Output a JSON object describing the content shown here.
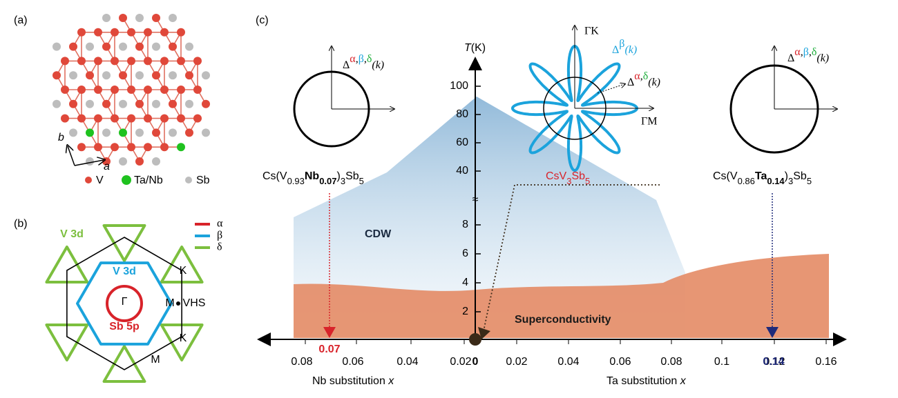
{
  "panel_a": {
    "label": "(a)",
    "axis_b": "b",
    "axis_a": "a",
    "legend": [
      "V",
      "Ta/Nb",
      "Sb"
    ]
  },
  "panel_b": {
    "label": "(b)",
    "legend": [
      "α",
      "β",
      "δ"
    ],
    "v3d_outer": "V 3d",
    "v3d_inner": "V 3d",
    "gamma": "Γ",
    "sb5p": "Sb 5p",
    "k_upper": "K",
    "m_right": "M",
    "vhs": "VHS",
    "k_lower": "K",
    "m_lower": "M"
  },
  "panel_c": {
    "label": "(c)",
    "t_axis": [
      "T",
      "(K)"
    ],
    "y_ticks_upper": [
      100,
      80,
      60,
      40
    ],
    "y_ticks_lower": [
      8,
      6,
      4,
      2
    ],
    "break_mark": "≈",
    "x_ticks_left": [
      0.08,
      0.06,
      0.04,
      0.02
    ],
    "x_tick_zero": 0,
    "x_ticks_right": [
      0.02,
      0.04,
      0.06,
      0.08,
      0.1,
      0.12,
      0.16
    ],
    "nb_marked": 0.07,
    "ta_marked": 0.14,
    "nb_axis": [
      "Nb  substitution ",
      "x"
    ],
    "ta_axis": [
      "Ta  substitution ",
      "x"
    ],
    "cdw": "CDW",
    "sc": "Superconductivity",
    "nb_compound": [
      "Cs(V",
      "0.93",
      "Nb",
      "0.07",
      ")",
      "3",
      "Sb",
      "5"
    ],
    "pristine": [
      "CsV",
      "3",
      "Sb",
      "5"
    ],
    "ta_compound": [
      "Cs(V",
      "0.86",
      "Ta",
      "0.14",
      ")",
      "3",
      "Sb",
      "5"
    ],
    "gap_left": [
      "Δ",
      "α",
      ",",
      "β",
      ",",
      "δ",
      "(k)"
    ],
    "gap_right": [
      "Δ",
      "α",
      ",",
      "β",
      ",",
      "δ",
      "(k)"
    ],
    "gap_beta": [
      "Δ",
      "β",
      "(k)"
    ],
    "gap_ad": [
      "Δ",
      "α",
      ",",
      "δ",
      "(k)"
    ],
    "gk": "ΓK",
    "gm": "ΓM"
  }
}
